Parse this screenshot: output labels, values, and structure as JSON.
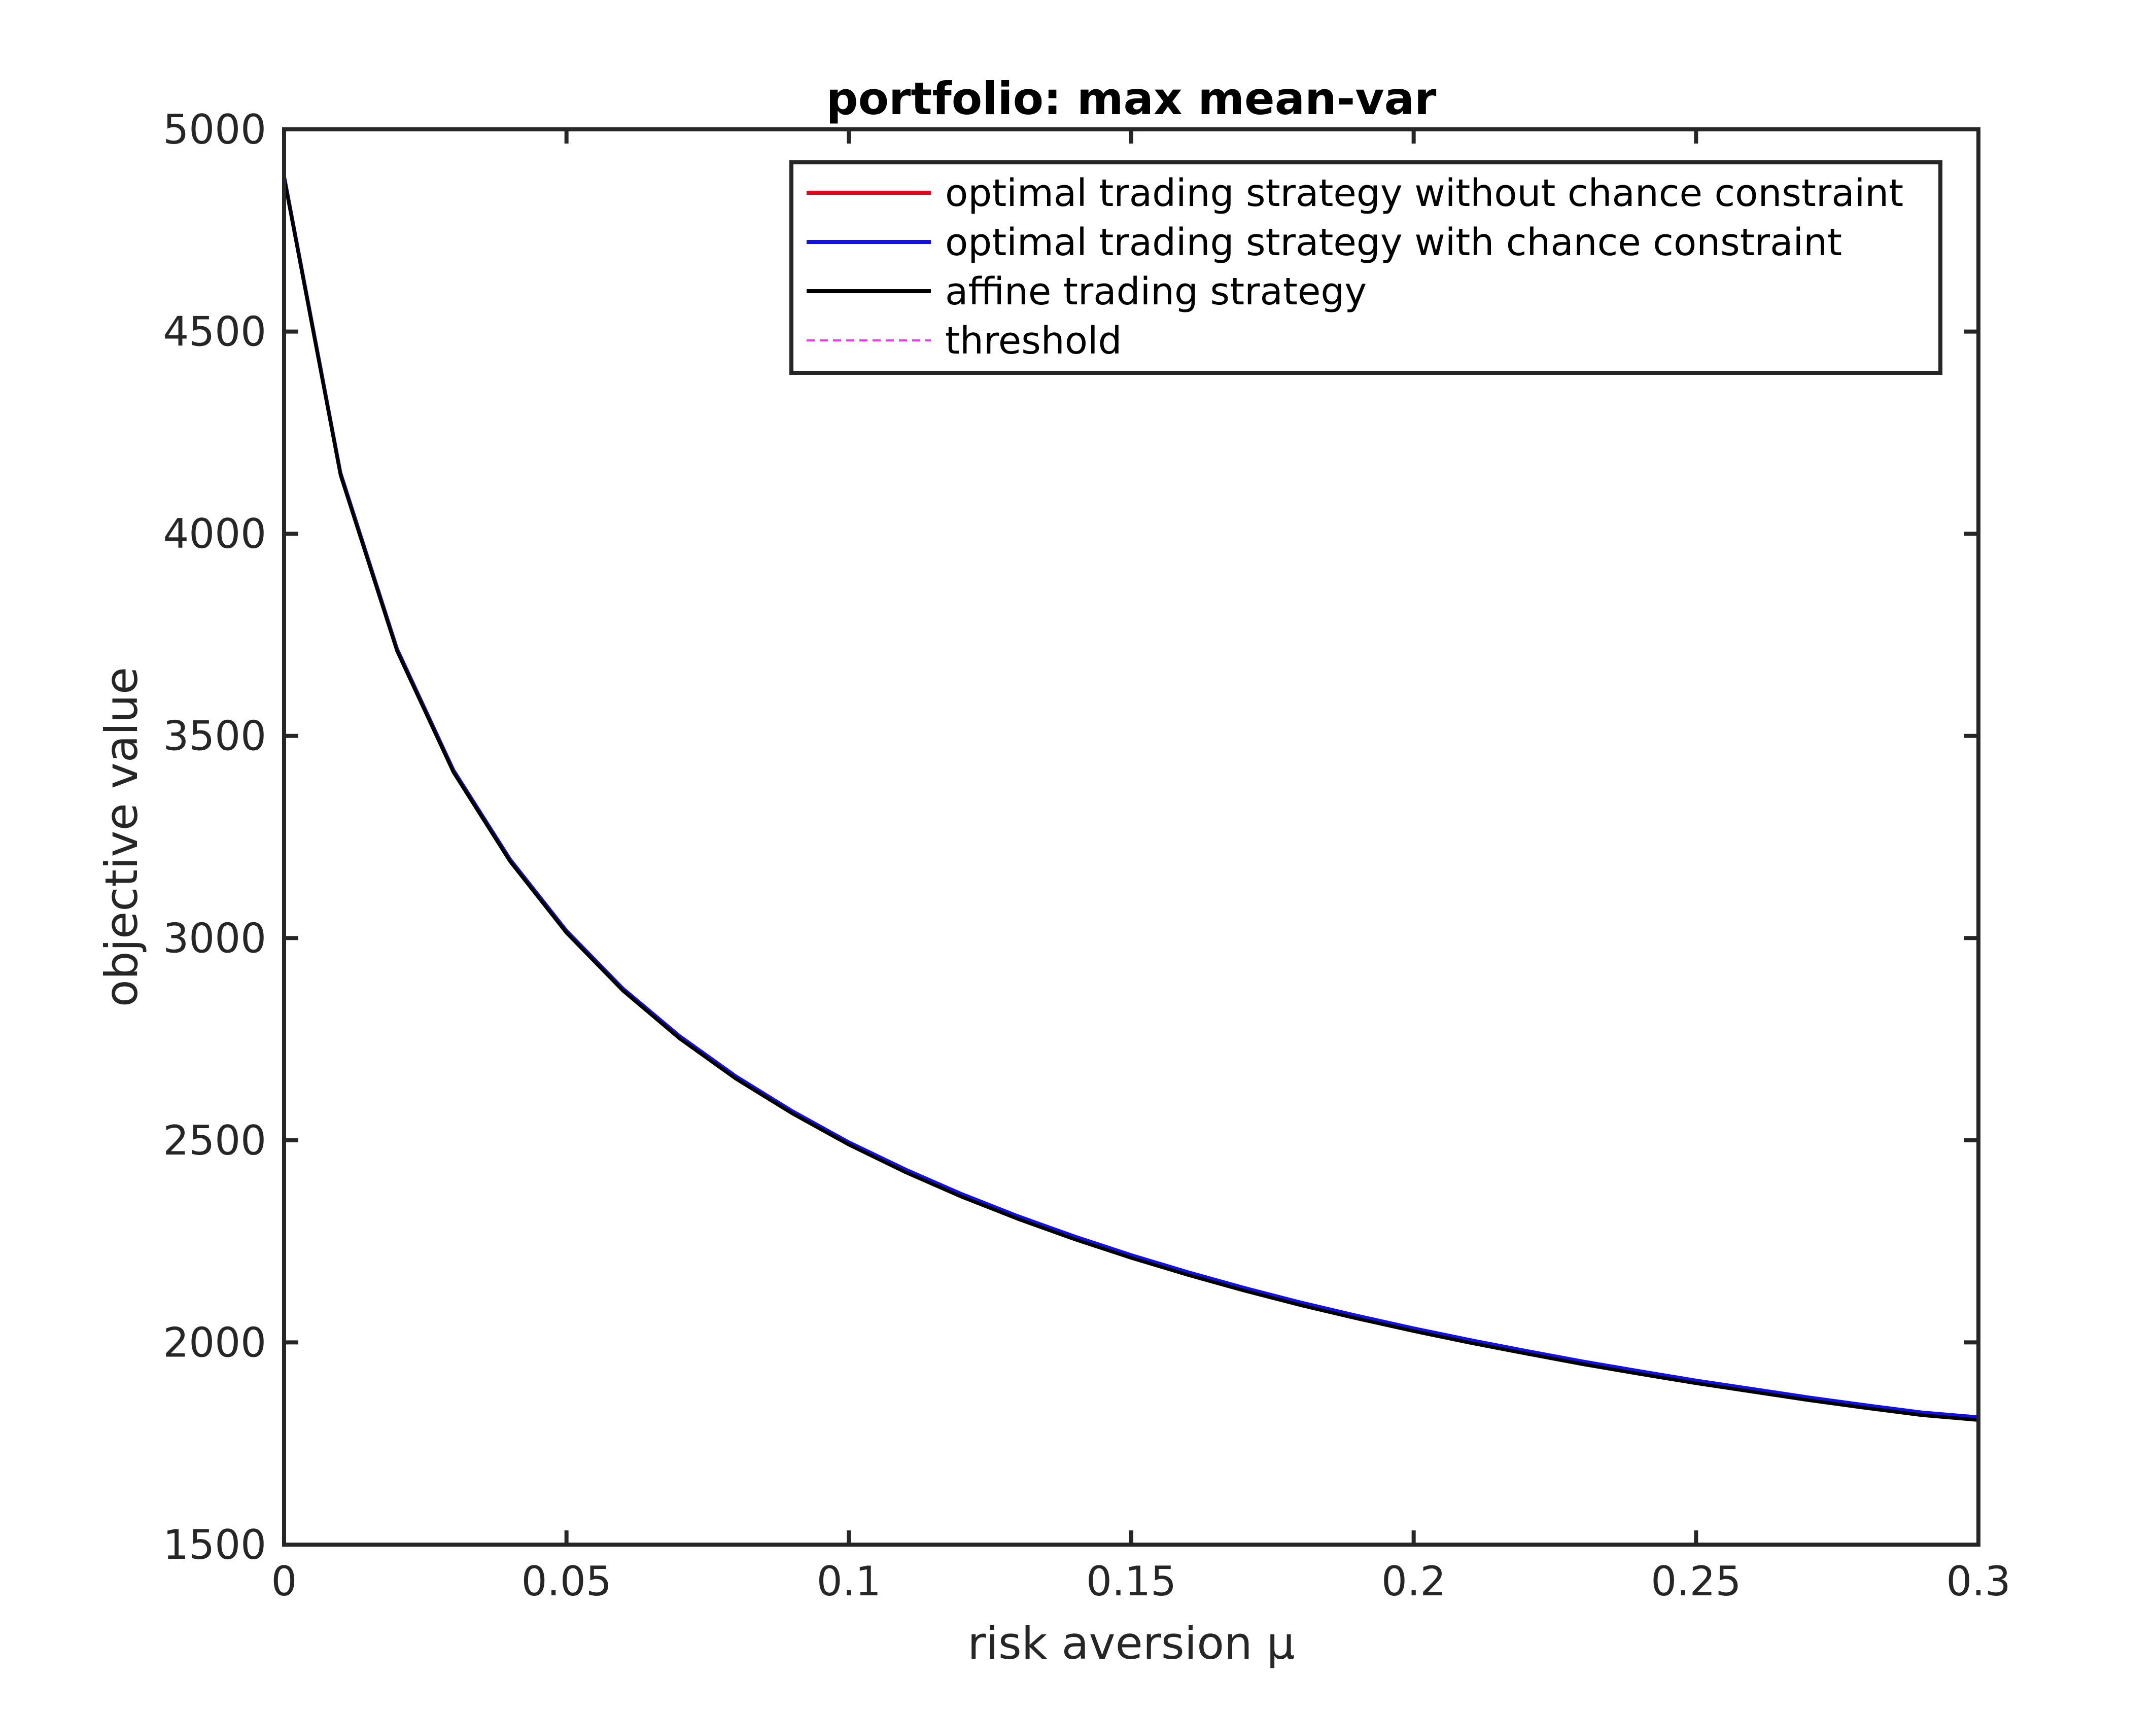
{
  "chart_data": {
    "type": "line",
    "title": "portfolio: max mean-var",
    "xlabel": "risk aversion μ",
    "ylabel": "objective value",
    "xlim": [
      0,
      0.3
    ],
    "ylim": [
      1500,
      5000
    ],
    "xticks": [
      0,
      0.05,
      0.1,
      0.15,
      0.2,
      0.25,
      0.3
    ],
    "xtick_labels": [
      "0",
      "0.05",
      "0.1",
      "0.15",
      "0.2",
      "0.25",
      "0.3"
    ],
    "yticks": [
      1500,
      2000,
      2500,
      3000,
      3500,
      4000,
      4500,
      5000
    ],
    "ytick_labels": [
      "1500",
      "2000",
      "2500",
      "3000",
      "3500",
      "4000",
      "4500",
      "5000"
    ],
    "grid": false,
    "legend_position": "top-right",
    "x": [
      0,
      0.01,
      0.02,
      0.03,
      0.04,
      0.05,
      0.06,
      0.07,
      0.08,
      0.09,
      0.1,
      0.11,
      0.12,
      0.13,
      0.14,
      0.15,
      0.16,
      0.17,
      0.18,
      0.19,
      0.2,
      0.21,
      0.22,
      0.23,
      0.24,
      0.25,
      0.26,
      0.27,
      0.28,
      0.29,
      0.3
    ],
    "series": [
      {
        "name": "optimal trading strategy without chance constraint",
        "color": "#e8001c",
        "style": "solid",
        "values": [
          4885,
          4150,
          3715,
          3415,
          3195,
          3018,
          2875,
          2758,
          2658,
          2572,
          2495,
          2428,
          2367,
          2312,
          2262,
          2216,
          2174,
          2135,
          2099,
          2066,
          2035,
          2006,
          1979,
          1953,
          1929,
          1906,
          1885,
          1864,
          1845,
          1827,
          1815
        ]
      },
      {
        "name": "optimal trading strategy with chance constraint",
        "color": "#1010e8",
        "style": "solid",
        "values": [
          4885,
          4150,
          3715,
          3415,
          3195,
          3018,
          2875,
          2758,
          2658,
          2572,
          2495,
          2428,
          2367,
          2312,
          2262,
          2216,
          2174,
          2135,
          2099,
          2066,
          2035,
          2006,
          1979,
          1953,
          1929,
          1906,
          1885,
          1864,
          1845,
          1827,
          1815
        ]
      },
      {
        "name": "affine trading strategy",
        "color": "#000000",
        "style": "solid",
        "values": [
          4880,
          4145,
          3710,
          3410,
          3190,
          3013,
          2870,
          2752,
          2652,
          2566,
          2489,
          2421,
          2360,
          2305,
          2255,
          2209,
          2167,
          2128,
          2092,
          2059,
          2028,
          1999,
          1972,
          1946,
          1922,
          1899,
          1878,
          1857,
          1838,
          1820,
          1808
        ]
      },
      {
        "name": "threshold",
        "color": "#ff33ff",
        "style": "dashed",
        "x_value": 0.3
      }
    ]
  }
}
